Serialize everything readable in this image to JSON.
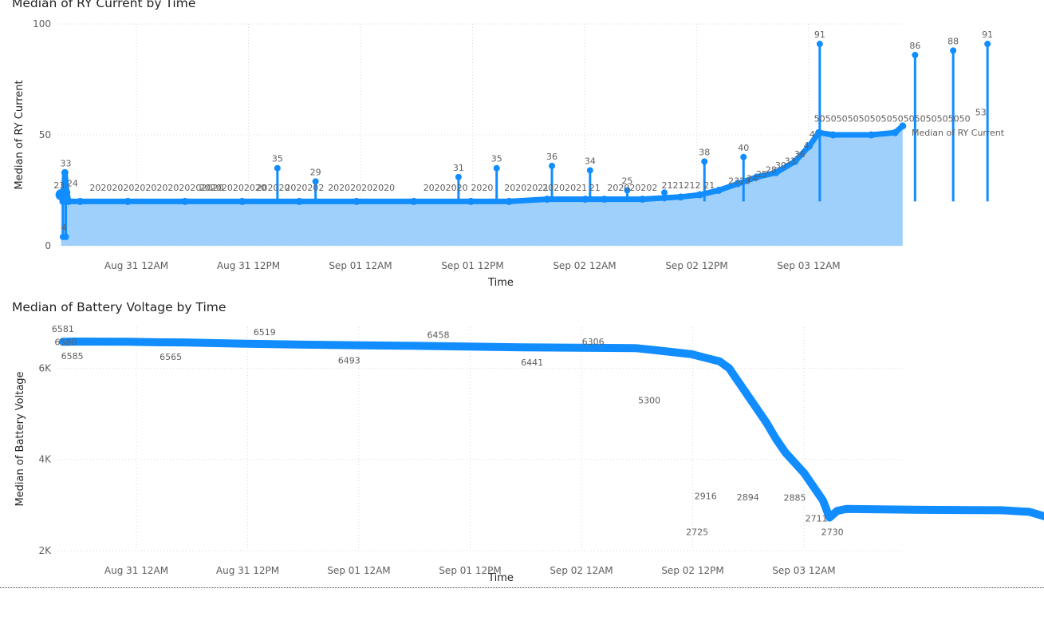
{
  "colors": {
    "series": "#118dff",
    "area": "#9fd0fb",
    "grid": "#d9d9d9",
    "text": "#605e5c",
    "title": "#252423"
  },
  "chart_data": [
    {
      "type": "area",
      "title": "Median of RY Current by Time",
      "xlabel": "Time",
      "ylabel": "Median of RY Current",
      "x_ticks": [
        "Aug 31 12AM",
        "Aug 31 12PM",
        "Sep 01 12AM",
        "Sep 01 12PM",
        "Sep 02 12AM",
        "Sep 02 12PM",
        "Sep 03 12AM"
      ],
      "y_ticks": [
        "0",
        "50",
        "100"
      ],
      "ylim": [
        0,
        100
      ],
      "xlim_hours": [
        -7.3,
        81.4
      ],
      "legend_placement": "right",
      "series": [
        {
          "name": "Median of RY Current",
          "points": [
            [
              -7.0,
              23
            ],
            [
              -6.8,
              20
            ],
            [
              -6.6,
              33
            ],
            [
              -6.4,
              24
            ],
            [
              -6.2,
              20
            ],
            [
              -5.0,
              20
            ],
            [
              0,
              20
            ],
            [
              6,
              20
            ],
            [
              12,
              20
            ],
            [
              18,
              20
            ],
            [
              24,
              20
            ],
            [
              30,
              20
            ],
            [
              36,
              20
            ],
            [
              40,
              20
            ],
            [
              44,
              21
            ],
            [
              48,
              21
            ],
            [
              50,
              21
            ],
            [
              54,
              21
            ],
            [
              58,
              22
            ],
            [
              60,
              23
            ],
            [
              62,
              25
            ],
            [
              64,
              28
            ],
            [
              66,
              31
            ],
            [
              68,
              33
            ],
            [
              70,
              38
            ],
            [
              71.5,
              45
            ],
            [
              72.5,
              51
            ],
            [
              74,
              50
            ],
            [
              78,
              50
            ],
            [
              80.5,
              51
            ],
            [
              81.3,
              54
            ]
          ],
          "spikes": [
            [
              -6.8,
              4
            ],
            [
              -6.5,
              4
            ],
            [
              15.7,
              35
            ],
            [
              19.7,
              29
            ],
            [
              34.7,
              31
            ],
            [
              38.7,
              35
            ],
            [
              44.5,
              36
            ],
            [
              48.5,
              34
            ],
            [
              52.4,
              25
            ],
            [
              56.3,
              24
            ],
            [
              60.5,
              38
            ],
            [
              64.6,
              40
            ],
            [
              72.6,
              91
            ],
            [
              82.6,
              86
            ],
            [
              86.6,
              88
            ],
            [
              90.2,
              91
            ]
          ],
          "data_labels": [
            {
              "text": "23",
              "x": -7.2,
              "y": 23
            },
            {
              "text": "33",
              "x": -6.5,
              "y": 33
            },
            {
              "text": "24",
              "x": -5.8,
              "y": 24
            },
            {
              "text": "4",
              "x": -6.7,
              "y": 4
            },
            {
              "text": "202020202020202020202020",
              "x": -4.0,
              "y": 22
            },
            {
              "text": "202020202020",
              "x": 7.5,
              "y": 22
            },
            {
              "text": "202020",
              "x": 13.5,
              "y": 22
            },
            {
              "text": "35",
              "x": 15.7,
              "y": 35
            },
            {
              "text": "2020202",
              "x": 16.5,
              "y": 22
            },
            {
              "text": "29",
              "x": 19.7,
              "y": 29
            },
            {
              "text": "202020202020",
              "x": 21.0,
              "y": 22
            },
            {
              "text": "31",
              "x": 34.7,
              "y": 31
            },
            {
              "text": "20202020",
              "x": 31.0,
              "y": 22
            },
            {
              "text": "35",
              "x": 38.7,
              "y": 35
            },
            {
              "text": "2020",
              "x": 36.0,
              "y": 22
            },
            {
              "text": "20202021",
              "x": 39.5,
              "y": 22
            },
            {
              "text": "36",
              "x": 44.5,
              "y": 36
            },
            {
              "text": "20202021",
              "x": 43.5,
              "y": 22
            },
            {
              "text": "34",
              "x": 48.5,
              "y": 34
            },
            {
              "text": "21",
              "x": 49.0,
              "y": 22
            },
            {
              "text": "25",
              "x": 52.4,
              "y": 25
            },
            {
              "text": "202020202",
              "x": 50.3,
              "y": 22
            },
            {
              "text": "2121212",
              "x": 56.0,
              "y": 23
            },
            {
              "text": "38",
              "x": 60.5,
              "y": 38
            },
            {
              "text": "21",
              "x": 61.0,
              "y": 23
            },
            {
              "text": "40",
              "x": 64.6,
              "y": 40
            },
            {
              "text": "2323",
              "x": 63.0,
              "y": 25
            },
            {
              "text": "24",
              "x": 65.5,
              "y": 26
            },
            {
              "text": "25",
              "x": 66.5,
              "y": 28
            },
            {
              "text": "28",
              "x": 67.5,
              "y": 30
            },
            {
              "text": "30",
              "x": 68.5,
              "y": 32
            },
            {
              "text": "33",
              "x": 69.5,
              "y": 34
            },
            {
              "text": "36",
              "x": 70.5,
              "y": 37
            },
            {
              "text": "4",
              "x": 71.2,
              "y": 41
            },
            {
              "text": "4",
              "x": 71.8,
              "y": 46
            },
            {
              "text": "91",
              "x": 72.6,
              "y": 91
            },
            {
              "text": "5050505050505050505050505050",
              "x": 72.0,
              "y": 53
            },
            {
              "text": "86",
              "x": 82.6,
              "y": 86
            },
            {
              "text": "88",
              "x": 86.6,
              "y": 88
            },
            {
              "text": "53",
              "x": 89.5,
              "y": 56
            },
            {
              "text": "91",
              "x": 90.2,
              "y": 91
            }
          ]
        }
      ]
    },
    {
      "type": "line",
      "title": "Median of Battery Voltage by Time",
      "xlabel": "Time",
      "ylabel": "Median of Battery Voltage",
      "x_ticks": [
        "Aug 31 12AM",
        "Aug 31 12PM",
        "Sep 01 12AM",
        "Sep 01 12PM",
        "Sep 02 12AM",
        "Sep 02 12PM",
        "Sep 03 12AM"
      ],
      "y_ticks": [
        "2K",
        "4K",
        "6K"
      ],
      "ylim": [
        2000,
        6900
      ],
      "xlim_hours": [
        -7.5,
        82.6
      ],
      "series": [
        {
          "name": "Median of Battery Voltage",
          "points": [
            [
              -7.0,
              6581
            ],
            [
              -6.5,
              6580
            ],
            [
              -6.0,
              6585
            ],
            [
              0,
              6580
            ],
            [
              3,
              6570
            ],
            [
              6,
              6565
            ],
            [
              12,
              6540
            ],
            [
              18,
              6519
            ],
            [
              24,
              6505
            ],
            [
              30,
              6493
            ],
            [
              36,
              6475
            ],
            [
              42,
              6458
            ],
            [
              48,
              6450
            ],
            [
              54,
              6441
            ],
            [
              56,
              6400
            ],
            [
              60,
              6306
            ],
            [
              63,
              6150
            ],
            [
              64,
              6000
            ],
            [
              65,
              5700
            ],
            [
              66,
              5400
            ],
            [
              67,
              5100
            ],
            [
              68,
              4800
            ],
            [
              69,
              4450
            ],
            [
              70,
              4150
            ],
            [
              72,
              3700
            ],
            [
              74,
              3100
            ],
            [
              74.7,
              2725
            ],
            [
              75.5,
              2870
            ],
            [
              76.5,
              2916
            ],
            [
              80,
              2905
            ],
            [
              85,
              2894
            ],
            [
              90,
              2888
            ],
            [
              93,
              2885
            ],
            [
              96,
              2850
            ],
            [
              98,
              2730
            ]
          ],
          "data_labels": [
            {
              "text": "6581",
              "x": -7.0,
              "y": 6581,
              "pos": "above"
            },
            {
              "text": "6580",
              "x": -6.7,
              "y": 6580,
              "pos": "center"
            },
            {
              "text": "6585",
              "x": -6.0,
              "y": 6585,
              "pos": "below"
            },
            {
              "text": "6565",
              "x": 4.5,
              "y": 6565,
              "pos": "below"
            },
            {
              "text": "6519",
              "x": 14.5,
              "y": 6519,
              "pos": "above"
            },
            {
              "text": "6493",
              "x": 23.5,
              "y": 6493,
              "pos": "below"
            },
            {
              "text": "6458",
              "x": 33.0,
              "y": 6458,
              "pos": "above"
            },
            {
              "text": "6441",
              "x": 43.0,
              "y": 6441,
              "pos": "below"
            },
            {
              "text": "6306",
              "x": 49.5,
              "y": 6306,
              "pos": "above"
            },
            {
              "text": "5300",
              "x": 55.5,
              "y": 5300,
              "pos": "center"
            },
            {
              "text": "2916",
              "x": 61.5,
              "y": 2916,
              "pos": "above"
            },
            {
              "text": "2725",
              "x": 60.6,
              "y": 2725,
              "pos": "below"
            },
            {
              "text": "2894",
              "x": 66.0,
              "y": 2894,
              "pos": "above"
            },
            {
              "text": "2885",
              "x": 71.0,
              "y": 2885,
              "pos": "above"
            },
            {
              "text": "2711",
              "x": 73.3,
              "y": 2711,
              "pos": "center"
            },
            {
              "text": "2730",
              "x": 75.0,
              "y": 2730,
              "pos": "below"
            }
          ]
        }
      ]
    }
  ]
}
